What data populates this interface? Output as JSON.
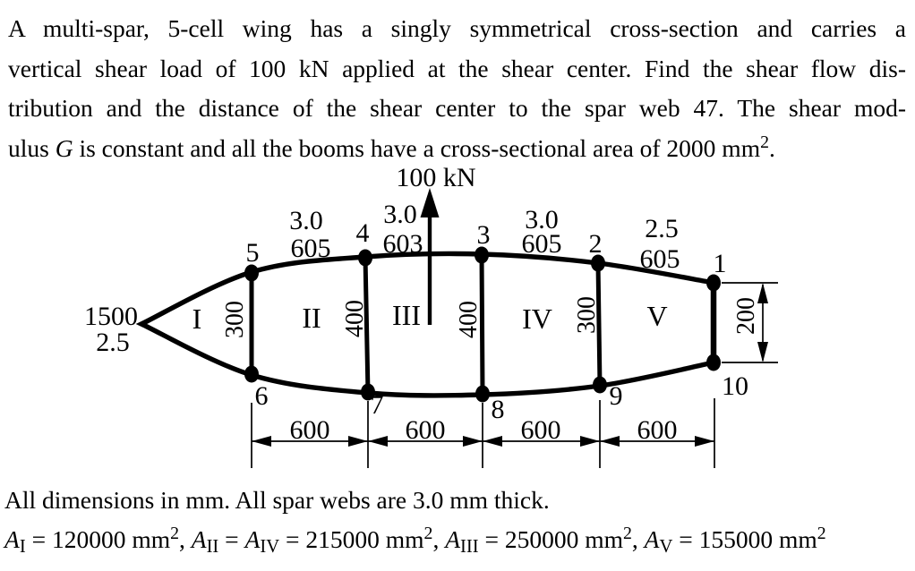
{
  "problem": {
    "lines": [
      {
        "runs": [
          {
            "t": "A multi-spar, 5-cell wing has a singly symmetrical cross-section and carries a"
          }
        ]
      },
      {
        "runs": [
          {
            "t": "vertical shear load of 100 kN applied at the shear center. Find the shear flow dis-"
          }
        ]
      },
      {
        "runs": [
          {
            "t": "tribution and the distance of the shear center to the spar web 47. The shear mod-"
          }
        ]
      },
      {
        "runs": [
          {
            "t": "ulus "
          },
          {
            "t": "G",
            "s": "var"
          },
          {
            "t": " is constant and all the booms have a cross-sectional area of 2000 mm"
          },
          {
            "t": "2",
            "s": "sup"
          },
          {
            "t": "."
          }
        ]
      }
    ]
  },
  "diagram": {
    "load_label": "100 kN",
    "nose": {
      "chord": "1500",
      "thickness": "2.5"
    },
    "panels": [
      {
        "thickness": "3.0",
        "length": "605"
      },
      {
        "thickness": "3.0",
        "length": "603"
      },
      {
        "thickness": "3.0",
        "length": "605"
      },
      {
        "thickness": "2.5",
        "length": "605"
      }
    ],
    "webs": {
      "w56": "300",
      "w47": "400",
      "w38": "400",
      "w29": "300",
      "w110": "200"
    },
    "cells": {
      "c1": "I",
      "c2": "II",
      "c3": "III",
      "c4": "IV",
      "c5": "V"
    },
    "booms": {
      "b1": "1",
      "b2": "2",
      "b3": "3",
      "b4": "4",
      "b5": "5",
      "b6": "6",
      "b7": "7",
      "b8": "8",
      "b9": "9",
      "b10": "10"
    },
    "bottom_dims": {
      "d1": "600",
      "d2": "600",
      "d3": "600",
      "d4": "600"
    },
    "right_dim": "200",
    "ink_color": "#000000",
    "background_color": "#ffffff"
  },
  "footer": {
    "note": "All dimensions in mm. All spar webs are 3.0 mm thick.",
    "formula_runs": [
      {
        "t": "A",
        "s": "var"
      },
      {
        "t": "I",
        "s": "sub"
      },
      {
        "t": " = 120000 mm"
      },
      {
        "t": "2",
        "s": "sup"
      },
      {
        "t": ", "
      },
      {
        "t": "A",
        "s": "var"
      },
      {
        "t": "II",
        "s": "sub"
      },
      {
        "t": " = "
      },
      {
        "t": "A",
        "s": "var"
      },
      {
        "t": "IV",
        "s": "sub"
      },
      {
        "t": " = 215000 mm"
      },
      {
        "t": "2",
        "s": "sup"
      },
      {
        "t": ", "
      },
      {
        "t": "A",
        "s": "var"
      },
      {
        "t": "III",
        "s": "sub"
      },
      {
        "t": " = 250000 mm"
      },
      {
        "t": "2",
        "s": "sup"
      },
      {
        "t": ", "
      },
      {
        "t": "A",
        "s": "var"
      },
      {
        "t": "V",
        "s": "sub"
      },
      {
        "t": " = 155000 mm"
      },
      {
        "t": "2",
        "s": "sup"
      }
    ]
  }
}
